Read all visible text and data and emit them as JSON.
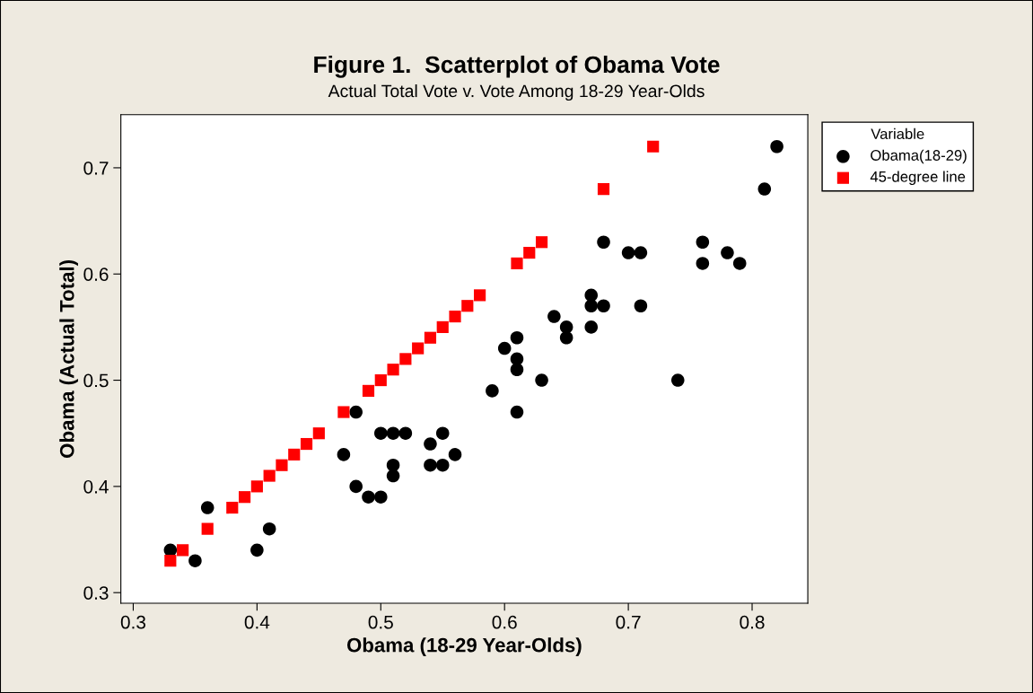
{
  "chart_data": {
    "type": "scatter",
    "title": "Figure 1.  Scatterplot of Obama Vote",
    "subtitle": "Actual Total Vote v. Vote Among 18-29 Year-Olds",
    "xlabel": "Obama (18-29 Year-Olds)",
    "ylabel": "Obama (Actual Total)",
    "legend_title": "Variable",
    "legend": "top right",
    "grid": false,
    "xlim": [
      0.29,
      0.845
    ],
    "ylim": [
      0.29,
      0.75
    ],
    "xticks": [
      0.3,
      0.4,
      0.5,
      0.6,
      0.7,
      0.8
    ],
    "yticks": [
      0.3,
      0.4,
      0.5,
      0.6,
      0.7
    ],
    "series": [
      {
        "name": "Obama(18-29)",
        "color": "#000000",
        "marker": "circle",
        "x": [
          0.33,
          0.35,
          0.36,
          0.4,
          0.41,
          0.47,
          0.48,
          0.48,
          0.49,
          0.5,
          0.5,
          0.51,
          0.51,
          0.51,
          0.52,
          0.54,
          0.54,
          0.55,
          0.55,
          0.56,
          0.59,
          0.6,
          0.61,
          0.61,
          0.61,
          0.61,
          0.63,
          0.64,
          0.65,
          0.65,
          0.67,
          0.67,
          0.67,
          0.68,
          0.68,
          0.7,
          0.71,
          0.71,
          0.74,
          0.76,
          0.76,
          0.78,
          0.79,
          0.81,
          0.82
        ],
        "values": [
          0.34,
          0.33,
          0.38,
          0.34,
          0.36,
          0.43,
          0.47,
          0.4,
          0.39,
          0.39,
          0.45,
          0.45,
          0.42,
          0.41,
          0.45,
          0.44,
          0.42,
          0.45,
          0.42,
          0.43,
          0.49,
          0.53,
          0.54,
          0.52,
          0.51,
          0.47,
          0.5,
          0.56,
          0.55,
          0.54,
          0.58,
          0.57,
          0.55,
          0.63,
          0.57,
          0.62,
          0.62,
          0.57,
          0.5,
          0.63,
          0.61,
          0.62,
          0.61,
          0.68,
          0.72
        ]
      },
      {
        "name": "45-degree line",
        "color": "#ff0000",
        "marker": "square",
        "x": [
          0.33,
          0.34,
          0.36,
          0.38,
          0.39,
          0.4,
          0.41,
          0.42,
          0.43,
          0.44,
          0.45,
          0.47,
          0.49,
          0.5,
          0.51,
          0.52,
          0.53,
          0.54,
          0.55,
          0.56,
          0.57,
          0.58,
          0.61,
          0.62,
          0.63,
          0.68,
          0.72
        ],
        "values": [
          0.33,
          0.34,
          0.36,
          0.38,
          0.39,
          0.4,
          0.41,
          0.42,
          0.43,
          0.44,
          0.45,
          0.47,
          0.49,
          0.5,
          0.51,
          0.52,
          0.53,
          0.54,
          0.55,
          0.56,
          0.57,
          0.58,
          0.61,
          0.62,
          0.63,
          0.68,
          0.72
        ]
      }
    ]
  }
}
